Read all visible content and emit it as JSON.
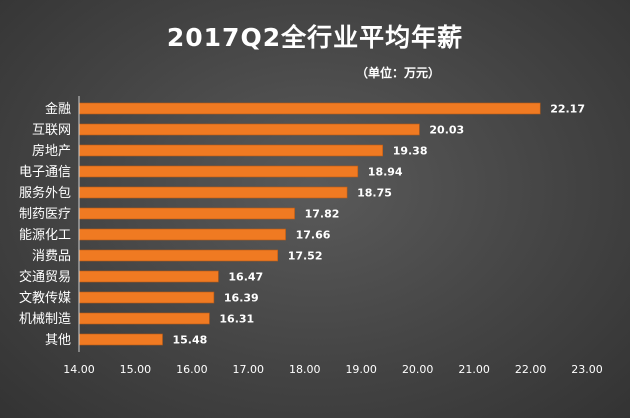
{
  "chart_data": {
    "type": "bar",
    "orientation": "horizontal",
    "title": "2017Q2全行业平均年薪",
    "subtitle": "（单位：万元）",
    "categories": [
      "金融",
      "互联网",
      "房地产",
      "电子通信",
      "服务外包",
      "制药医疗",
      "能源化工",
      "消费品",
      "交通贸易",
      "文教传媒",
      "机械制造",
      "其他"
    ],
    "values": [
      22.17,
      20.03,
      19.38,
      18.94,
      18.75,
      17.82,
      17.66,
      17.52,
      16.47,
      16.39,
      16.31,
      15.48
    ],
    "value_labels": [
      "22.17",
      "20.03",
      "19.38",
      "18.94",
      "18.75",
      "17.82",
      "17.66",
      "17.52",
      "16.47",
      "16.39",
      "16.31",
      "15.48"
    ],
    "xlim": [
      14.0,
      23.0
    ],
    "xticks": [
      14.0,
      15.0,
      16.0,
      17.0,
      18.0,
      19.0,
      20.0,
      21.0,
      22.0,
      23.0
    ],
    "xtick_labels": [
      "14.00",
      "15.00",
      "16.00",
      "17.00",
      "18.00",
      "19.00",
      "20.00",
      "21.00",
      "22.00",
      "23.00"
    ],
    "grid": false,
    "legend": "none",
    "bar_color": "#f07a22"
  }
}
